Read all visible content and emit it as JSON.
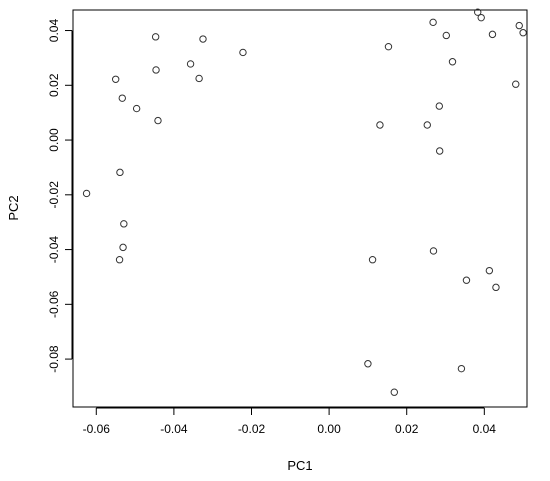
{
  "chart_data": {
    "type": "scatter",
    "title": "",
    "xlabel": "PC1",
    "ylabel": "PC2",
    "xlim": [
      -0.066,
      0.051
    ],
    "ylim": [
      -0.0975,
      0.0475
    ],
    "xticks": [
      -0.06,
      -0.04,
      -0.02,
      0.0,
      0.02,
      0.04
    ],
    "xtick_labels": [
      "-0.06",
      "-0.04",
      "-0.02",
      "0.00",
      "0.02",
      "0.04"
    ],
    "yticks": [
      -0.08,
      -0.06,
      -0.04,
      -0.02,
      0.0,
      0.02,
      0.04
    ],
    "ytick_labels": [
      "-0.08",
      "-0.06",
      "-0.04",
      "-0.02",
      "0.00",
      "0.02",
      "0.04"
    ],
    "grid": false,
    "marker": "open-circle",
    "marker_color": "#333333",
    "points": [
      {
        "x": -0.0625,
        "y": -0.0195
      },
      {
        "x": -0.055,
        "y": 0.0222
      },
      {
        "x": -0.0533,
        "y": 0.0153
      },
      {
        "x": -0.0496,
        "y": 0.0115
      },
      {
        "x": -0.0447,
        "y": 0.0377
      },
      {
        "x": -0.0446,
        "y": 0.0256
      },
      {
        "x": -0.0441,
        "y": 0.0071
      },
      {
        "x": -0.0357,
        "y": 0.0278
      },
      {
        "x": -0.0335,
        "y": 0.0225
      },
      {
        "x": -0.0325,
        "y": 0.0369
      },
      {
        "x": -0.0222,
        "y": 0.032
      },
      {
        "x": -0.0539,
        "y": -0.0118
      },
      {
        "x": -0.0529,
        "y": -0.0306
      },
      {
        "x": -0.0531,
        "y": -0.0392
      },
      {
        "x": -0.054,
        "y": -0.0437
      },
      {
        "x": 0.01,
        "y": -0.0817
      },
      {
        "x": 0.0112,
        "y": -0.0437
      },
      {
        "x": 0.0131,
        "y": 0.0055
      },
      {
        "x": 0.0153,
        "y": 0.0341
      },
      {
        "x": 0.0168,
        "y": -0.0921
      },
      {
        "x": 0.0253,
        "y": 0.0055
      },
      {
        "x": 0.0268,
        "y": 0.043
      },
      {
        "x": 0.0269,
        "y": -0.0405
      },
      {
        "x": 0.0284,
        "y": 0.0124
      },
      {
        "x": 0.0285,
        "y": -0.004
      },
      {
        "x": 0.0302,
        "y": 0.0382
      },
      {
        "x": 0.0318,
        "y": 0.0286
      },
      {
        "x": 0.0341,
        "y": -0.0835
      },
      {
        "x": 0.0354,
        "y": -0.0512
      },
      {
        "x": 0.0383,
        "y": 0.0467
      },
      {
        "x": 0.0392,
        "y": 0.0447
      },
      {
        "x": 0.0413,
        "y": -0.0477
      },
      {
        "x": 0.0421,
        "y": 0.0386
      },
      {
        "x": 0.043,
        "y": -0.0538
      },
      {
        "x": 0.0481,
        "y": 0.0204
      },
      {
        "x": 0.049,
        "y": 0.0418
      },
      {
        "x": 0.05,
        "y": 0.0392
      }
    ]
  }
}
